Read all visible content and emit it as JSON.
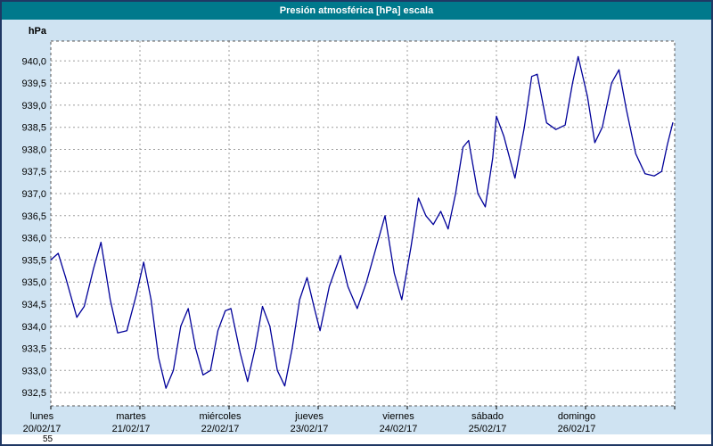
{
  "bottom_strip_text": "55",
  "colors": {
    "window_border": "#1f3864",
    "window_bg": "#cfe3f2",
    "title_bar_bg": "#00798c",
    "title_text": "#ffffff",
    "plot_bg": "#ffffff",
    "grid": "#9e9e9e",
    "plot_border": "#555555",
    "line": "#000099",
    "axis_text": "#000000"
  },
  "chart_data": {
    "type": "line",
    "title": "Presión atmosférica [hPa] escala",
    "ylabel": "hPa",
    "ylim": [
      932.2,
      940.45
    ],
    "x_range_hours": [
      0,
      168
    ],
    "grid": true,
    "legend": "none",
    "y_ticks": [
      {
        "value": 940.0,
        "label": "940,0"
      },
      {
        "value": 939.5,
        "label": "939,5"
      },
      {
        "value": 939.0,
        "label": "939,0"
      },
      {
        "value": 938.5,
        "label": "938,5"
      },
      {
        "value": 938.0,
        "label": "938,0"
      },
      {
        "value": 937.5,
        "label": "937,5"
      },
      {
        "value": 937.0,
        "label": "937,0"
      },
      {
        "value": 936.5,
        "label": "936,5"
      },
      {
        "value": 936.0,
        "label": "936,0"
      },
      {
        "value": 935.5,
        "label": "935,5"
      },
      {
        "value": 935.0,
        "label": "935,0"
      },
      {
        "value": 934.5,
        "label": "934,5"
      },
      {
        "value": 934.0,
        "label": "934,0"
      },
      {
        "value": 933.5,
        "label": "933,5"
      },
      {
        "value": 933.0,
        "label": "933,0"
      },
      {
        "value": 932.5,
        "label": "932,5"
      }
    ],
    "day_labels": [
      {
        "name": "lunes",
        "date": "20/02/17"
      },
      {
        "name": "martes",
        "date": "21/02/17"
      },
      {
        "name": "miércoles",
        "date": "22/02/17"
      },
      {
        "name": "jueves",
        "date": "23/02/17"
      },
      {
        "name": "viernes",
        "date": "24/02/17"
      },
      {
        "name": "sábado",
        "date": "25/02/17"
      },
      {
        "name": "domingo",
        "date": "26/02/17"
      }
    ],
    "series": [
      {
        "name": "Presión atmosférica",
        "x_hours": [
          0,
          2,
          4,
          7,
          9,
          11.5,
          13.5,
          16,
          18,
          20.5,
          23,
          25,
          27,
          29,
          31,
          33,
          35,
          37,
          39,
          41,
          43,
          45,
          47,
          48.5,
          51,
          53,
          55,
          57,
          59,
          61,
          63,
          65,
          67,
          69,
          71,
          72.5,
          75,
          78,
          80,
          82.5,
          85,
          88,
          90,
          92.5,
          94.5,
          97,
          99,
          101,
          103,
          105,
          107,
          109,
          111,
          112.5,
          115,
          117,
          119,
          120,
          122,
          125,
          127.5,
          129.5,
          131,
          133.5,
          136,
          138.5,
          140.5,
          142,
          144.5,
          146.5,
          148.5,
          151,
          153,
          155,
          157.5,
          160,
          162.5,
          164.5,
          166,
          167.5
        ],
        "values": [
          935.5,
          935.65,
          935.1,
          934.2,
          934.45,
          935.3,
          935.9,
          934.6,
          933.85,
          933.9,
          934.7,
          935.45,
          934.6,
          933.3,
          932.6,
          933.0,
          934.0,
          934.4,
          933.5,
          932.9,
          933.0,
          933.9,
          934.35,
          934.4,
          933.4,
          932.75,
          933.5,
          934.45,
          934.0,
          933.0,
          932.65,
          933.5,
          934.6,
          935.1,
          934.4,
          933.9,
          934.9,
          935.6,
          934.9,
          934.4,
          935.0,
          935.9,
          936.5,
          935.2,
          934.6,
          935.8,
          936.9,
          936.5,
          936.3,
          936.6,
          936.2,
          937.0,
          938.05,
          938.2,
          937.0,
          936.7,
          937.8,
          938.75,
          938.3,
          937.35,
          938.5,
          939.65,
          939.7,
          938.6,
          938.45,
          938.55,
          939.5,
          940.1,
          939.2,
          938.15,
          938.5,
          939.5,
          939.8,
          938.9,
          937.9,
          937.45,
          937.4,
          937.5,
          938.1,
          938.6
        ]
      }
    ]
  }
}
